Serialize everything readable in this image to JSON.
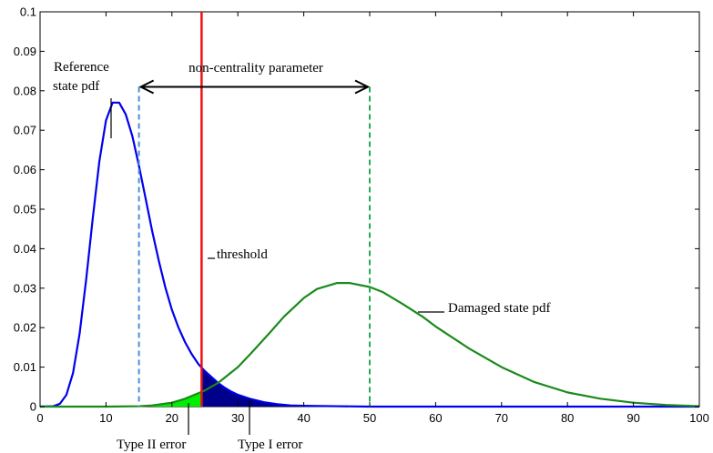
{
  "chart_data": {
    "type": "line",
    "title": "",
    "xlabel": "",
    "ylabel": "",
    "xlim": [
      0,
      100
    ],
    "ylim": [
      0,
      0.1
    ],
    "xticks": [
      "0",
      "10",
      "20",
      "30",
      "40",
      "50",
      "60",
      "70",
      "80",
      "90",
      "100"
    ],
    "yticks": [
      "0",
      "0.01",
      "0.02",
      "0.03",
      "0.04",
      "0.05",
      "0.06",
      "0.07",
      "0.08",
      "0.09",
      "0.1"
    ],
    "grid": false,
    "series": [
      {
        "name": "Reference state pdf",
        "color": "#0000ee",
        "x": [
          0,
          2,
          3,
          4,
          5,
          6,
          7,
          8,
          9,
          10,
          11,
          12,
          13,
          14,
          15,
          16,
          17,
          18,
          19,
          20,
          21,
          22,
          23,
          24,
          25,
          26,
          27,
          28,
          29,
          30,
          32,
          34,
          36,
          38,
          40,
          45,
          50,
          60,
          70,
          80,
          90,
          100
        ],
        "y": [
          0,
          0.0001,
          0.0007,
          0.003,
          0.0085,
          0.0185,
          0.0323,
          0.0478,
          0.0622,
          0.0725,
          0.077,
          0.077,
          0.074,
          0.0685,
          0.061,
          0.0528,
          0.0445,
          0.037,
          0.0302,
          0.0245,
          0.02,
          0.0163,
          0.0133,
          0.0108,
          0.009,
          0.0075,
          0.006,
          0.0048,
          0.0038,
          0.003,
          0.0019,
          0.0011,
          0.0006,
          0.0003,
          0.0002,
          0.0001,
          0,
          0,
          0,
          0,
          0,
          0
        ]
      },
      {
        "name": "Damaged state pdf",
        "color": "#1a8a1a",
        "x": [
          0,
          5,
          10,
          15,
          17,
          20,
          22,
          25,
          27,
          30,
          32,
          35,
          37,
          40,
          42,
          45,
          47,
          50,
          52,
          55,
          58,
          60,
          65,
          70,
          75,
          80,
          85,
          90,
          95,
          100
        ],
        "y": [
          0,
          0,
          0,
          0.0001,
          0.0003,
          0.001,
          0.002,
          0.0041,
          0.006,
          0.01,
          0.0135,
          0.019,
          0.0228,
          0.0275,
          0.0298,
          0.0313,
          0.0313,
          0.0303,
          0.029,
          0.026,
          0.0228,
          0.0203,
          0.0148,
          0.01,
          0.0062,
          0.0036,
          0.002,
          0.001,
          0.0004,
          0.0001
        ]
      }
    ],
    "threshold": 24.5,
    "reference_marker": 15,
    "damaged_marker": 50,
    "arrow_y": 0.081,
    "annotations": {
      "reference_line1": "Reference",
      "reference_line2": "state pdf",
      "ncp": "non-centrality parameter",
      "threshold": "threshold",
      "damaged": "Damaged state pdf",
      "type2": "Type II error",
      "type1": "Type I error"
    },
    "colors": {
      "threshold": "#ee1111",
      "type1_fill": "#00008b",
      "type2_fill": "#00ee00",
      "reference_dash": "#4a8fd8",
      "damaged_dash": "#22aa55"
    }
  }
}
